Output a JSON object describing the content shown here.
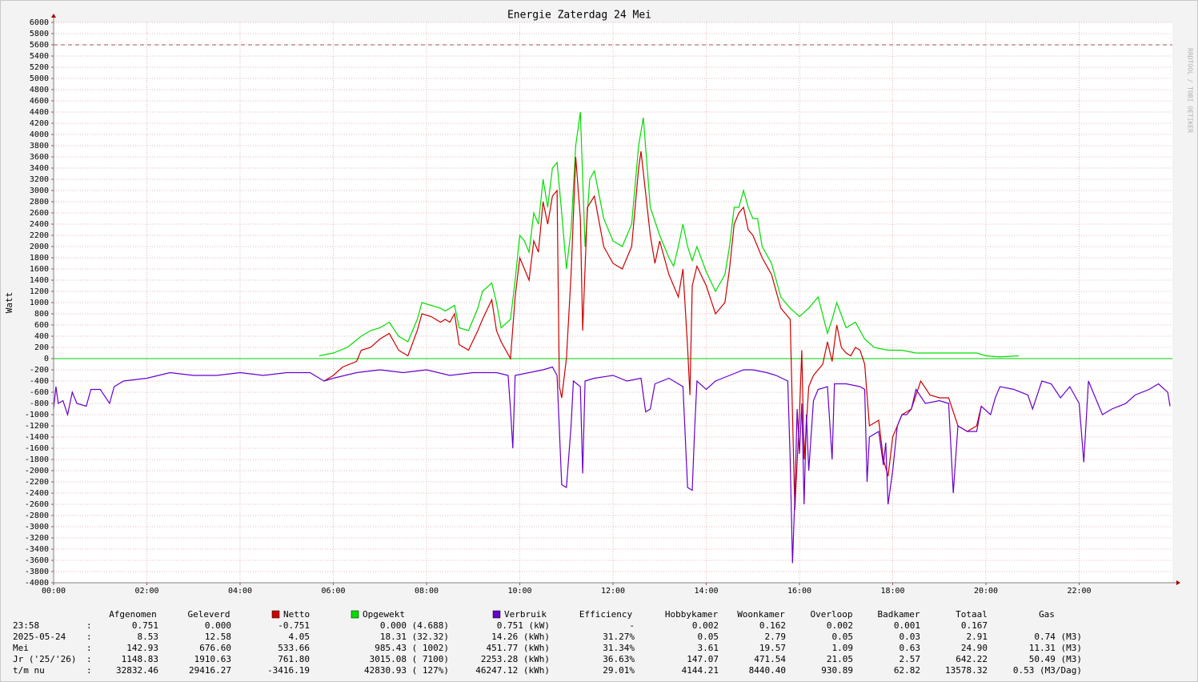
{
  "chart_data": {
    "type": "line",
    "title": "Energie Zaterdag  24 Mei",
    "y_label": "Watt",
    "watermark": "RRDTOOL / TOBI OETIKER",
    "xlim": [
      0,
      24
    ],
    "xticks": [
      {
        "value": 0,
        "label": "00:00"
      },
      {
        "value": 2,
        "label": "02:00"
      },
      {
        "value": 4,
        "label": "04:00"
      },
      {
        "value": 6,
        "label": "06:00"
      },
      {
        "value": 8,
        "label": "08:00"
      },
      {
        "value": 10,
        "label": "10:00"
      },
      {
        "value": 12,
        "label": "12:00"
      },
      {
        "value": 14,
        "label": "14:00"
      },
      {
        "value": 16,
        "label": "16:00"
      },
      {
        "value": 18,
        "label": "18:00"
      },
      {
        "value": 20,
        "label": "20:00"
      },
      {
        "value": 22,
        "label": "22:00"
      }
    ],
    "ylim": [
      -4000,
      6000
    ],
    "yticks": [
      -4000,
      -3800,
      -3600,
      -3400,
      -3200,
      -3000,
      -2800,
      -2600,
      -2400,
      -2200,
      -2000,
      -1800,
      -1600,
      -1400,
      -1200,
      -1000,
      -800,
      -600,
      -400,
      -200,
      0,
      200,
      400,
      600,
      800,
      1000,
      1200,
      1400,
      1600,
      1800,
      2000,
      2200,
      2400,
      2600,
      2800,
      3000,
      3200,
      3400,
      3600,
      3800,
      4000,
      4200,
      4400,
      4600,
      4800,
      5000,
      5200,
      5400,
      5600,
      5800,
      6000
    ],
    "grid": true,
    "reference_line": 5600,
    "series": [
      {
        "name": "Opgewekt",
        "color": "#00dd00",
        "x": [
          5.7,
          6.0,
          6.3,
          6.6,
          6.8,
          7.0,
          7.2,
          7.4,
          7.6,
          7.8,
          7.9,
          8.1,
          8.3,
          8.4,
          8.6,
          8.7,
          8.9,
          9.1,
          9.2,
          9.4,
          9.5,
          9.6,
          9.8,
          9.9,
          10.0,
          10.1,
          10.2,
          10.3,
          10.4,
          10.5,
          10.6,
          10.7,
          10.8,
          10.9,
          11.0,
          11.1,
          11.2,
          11.3,
          11.4,
          11.5,
          11.6,
          11.8,
          12.0,
          12.2,
          12.4,
          12.55,
          12.65,
          12.8,
          13.0,
          13.2,
          13.3,
          13.4,
          13.5,
          13.6,
          13.7,
          13.8,
          14.0,
          14.2,
          14.4,
          14.5,
          14.6,
          14.7,
          14.8,
          14.9,
          15.0,
          15.1,
          15.2,
          15.4,
          15.6,
          15.8,
          16.0,
          16.2,
          16.4,
          16.6,
          16.7,
          16.8,
          17.0,
          17.2,
          17.4,
          17.6,
          17.9,
          18.2,
          18.5,
          19.0,
          19.5,
          19.8,
          20.0,
          20.3,
          20.7
        ],
        "values": [
          50,
          100,
          200,
          400,
          500,
          550,
          650,
          400,
          300,
          700,
          1000,
          950,
          900,
          850,
          950,
          550,
          500,
          900,
          1200,
          1350,
          1000,
          550,
          700,
          1400,
          2200,
          2100,
          1900,
          2600,
          2400,
          3200,
          2700,
          3400,
          3500,
          2600,
          1600,
          2300,
          3800,
          4400,
          2000,
          3200,
          3350,
          2500,
          2100,
          2000,
          2400,
          3800,
          4300,
          2700,
          2200,
          1800,
          1650,
          2000,
          2400,
          2000,
          1750,
          2000,
          1550,
          1200,
          1500,
          2000,
          2700,
          2700,
          3000,
          2700,
          2500,
          2500,
          2000,
          1700,
          1100,
          900,
          750,
          900,
          1100,
          450,
          700,
          1000,
          550,
          650,
          350,
          200,
          150,
          150,
          100,
          100,
          100,
          100,
          50,
          30,
          50
        ]
      },
      {
        "name": "Netto",
        "color": "#cc0000",
        "x": [
          5.8,
          6.0,
          6.2,
          6.5,
          6.6,
          6.8,
          7.0,
          7.2,
          7.4,
          7.6,
          7.8,
          7.9,
          8.1,
          8.3,
          8.4,
          8.5,
          8.6,
          8.7,
          8.9,
          9.1,
          9.2,
          9.4,
          9.5,
          9.6,
          9.8,
          9.9,
          10.0,
          10.1,
          10.2,
          10.3,
          10.4,
          10.5,
          10.6,
          10.7,
          10.8,
          10.85,
          10.9,
          11.0,
          11.1,
          11.2,
          11.3,
          11.35,
          11.45,
          11.6,
          11.8,
          12.0,
          12.2,
          12.4,
          12.55,
          12.6,
          12.8,
          12.9,
          13.0,
          13.2,
          13.4,
          13.5,
          13.6,
          13.65,
          13.7,
          13.8,
          14.0,
          14.2,
          14.4,
          14.5,
          14.6,
          14.7,
          14.8,
          14.9,
          15.0,
          15.2,
          15.4,
          15.6,
          15.8,
          15.9,
          16.0,
          16.05,
          16.1,
          16.2,
          16.3,
          16.5,
          16.6,
          16.7,
          16.8,
          16.9,
          17.0,
          17.1,
          17.2,
          17.3,
          17.4,
          17.5,
          17.7,
          17.8,
          17.9,
          18.0,
          18.2,
          18.4,
          18.6,
          18.8,
          19.0,
          19.2,
          19.4,
          19.6,
          19.8,
          19.9
        ],
        "values": [
          -400,
          -300,
          -150,
          -50,
          150,
          200,
          350,
          450,
          150,
          50,
          500,
          800,
          750,
          650,
          700,
          650,
          800,
          250,
          150,
          500,
          700,
          1050,
          500,
          300,
          0,
          1100,
          1800,
          1600,
          1400,
          2100,
          1900,
          2800,
          2400,
          2900,
          3000,
          -500,
          -700,
          0,
          1500,
          3600,
          2500,
          500,
          2700,
          2900,
          2000,
          1700,
          1600,
          2000,
          3400,
          3700,
          2200,
          1700,
          2100,
          1500,
          1100,
          1600,
          200,
          -650,
          1300,
          1650,
          1300,
          800,
          1000,
          1600,
          2400,
          2600,
          2700,
          2300,
          2200,
          1800,
          1500,
          900,
          700,
          -2700,
          -1000,
          150,
          -1800,
          -500,
          -300,
          -100,
          300,
          -50,
          600,
          200,
          100,
          50,
          200,
          150,
          -100,
          -1200,
          -1100,
          -1800,
          -2100,
          -1400,
          -1000,
          -900,
          -400,
          -650,
          -700,
          -700,
          -1200,
          -1300,
          -1200,
          -850
        ]
      },
      {
        "name": "Verbruik",
        "color": "#6600cc",
        "x": [
          0.0,
          0.05,
          0.1,
          0.2,
          0.3,
          0.4,
          0.5,
          0.7,
          0.8,
          1.0,
          1.2,
          1.3,
          1.5,
          2.0,
          2.5,
          3.0,
          3.5,
          4.0,
          4.5,
          5.0,
          5.5,
          5.7,
          5.8,
          6.0,
          6.5,
          7.0,
          7.5,
          8.0,
          8.5,
          9.0,
          9.5,
          9.75,
          9.8,
          9.85,
          9.9,
          10.5,
          10.7,
          10.8,
          10.9,
          11.0,
          11.1,
          11.15,
          11.3,
          11.35,
          11.4,
          11.6,
          12.0,
          12.3,
          12.6,
          12.7,
          12.8,
          12.9,
          13.2,
          13.5,
          13.6,
          13.7,
          13.75,
          13.8,
          14.0,
          14.2,
          14.5,
          14.8,
          15.0,
          15.3,
          15.5,
          15.75,
          15.8,
          15.85,
          15.9,
          15.95,
          16.0,
          16.05,
          16.1,
          16.15,
          16.2,
          16.3,
          16.4,
          16.6,
          16.7,
          16.75,
          17.0,
          17.3,
          17.4,
          17.45,
          17.5,
          17.7,
          17.8,
          17.85,
          17.9,
          18.0,
          18.1,
          18.2,
          18.3,
          18.4,
          18.5,
          18.7,
          19.0,
          19.2,
          19.3,
          19.4,
          19.6,
          19.8,
          19.9,
          20.1,
          20.2,
          20.3,
          20.6,
          20.9,
          21.0,
          21.2,
          21.4,
          21.6,
          21.8,
          22.0,
          22.1,
          22.2,
          22.5,
          22.7,
          23.0,
          23.2,
          23.5,
          23.7,
          23.9,
          23.95
        ],
        "values": [
          -900,
          -500,
          -800,
          -750,
          -1000,
          -600,
          -800,
          -850,
          -550,
          -550,
          -800,
          -500,
          -400,
          -350,
          -250,
          -300,
          -300,
          -250,
          -300,
          -250,
          -250,
          -350,
          -400,
          -350,
          -250,
          -200,
          -250,
          -200,
          -300,
          -250,
          -250,
          -300,
          -900,
          -1600,
          -300,
          -200,
          -150,
          -300,
          -2250,
          -2300,
          -1200,
          -400,
          -500,
          -2050,
          -400,
          -350,
          -300,
          -400,
          -350,
          -950,
          -900,
          -450,
          -350,
          -500,
          -2300,
          -2350,
          -1300,
          -400,
          -550,
          -400,
          -300,
          -200,
          -200,
          -250,
          -300,
          -400,
          -1800,
          -3650,
          -2500,
          -900,
          -1700,
          -800,
          -2600,
          -1000,
          -2000,
          -750,
          -550,
          -500,
          -1800,
          -450,
          -450,
          -500,
          -550,
          -2200,
          -1400,
          -1300,
          -1900,
          -1500,
          -2600,
          -2000,
          -1200,
          -1000,
          -1000,
          -900,
          -550,
          -800,
          -750,
          -800,
          -2400,
          -1200,
          -1300,
          -1300,
          -850,
          -1000,
          -700,
          -500,
          -550,
          -650,
          -900,
          -400,
          -450,
          -700,
          -500,
          -800,
          -1850,
          -400,
          -1000,
          -900,
          -800,
          -650,
          -550,
          -450,
          -600,
          -850
        ]
      }
    ]
  },
  "table": {
    "header_left": [
      "Afgenomen",
      "Geleverd"
    ],
    "header_right": [
      "Efficiency",
      "Hobbykamer",
      "Woonkamer",
      "Overloop",
      "Badkamer",
      "Totaal",
      "Gas"
    ],
    "rows": [
      [
        "23:58",
        ":",
        "0.751",
        "0.000",
        "-0.751",
        "0.000 (4.688)",
        "0.751 (kW)",
        "-",
        "0.002",
        "0.162",
        "0.002",
        "0.001",
        "0.167"
      ],
      [
        "2025-05-24",
        ":",
        "8.53",
        "12.58",
        "4.05",
        "18.31 (32.32)",
        "14.26 (kWh)",
        "31.27%",
        "0.05",
        "2.79",
        "0.05",
        "0.03",
        "2.91",
        "0.74 (M3)"
      ],
      [
        "Mei",
        ":",
        "142.93",
        "676.60",
        "533.66",
        "985.43 ( 1002)",
        "451.77 (kWh)",
        "31.34%",
        "3.61",
        "19.57",
        "1.09",
        "0.63",
        "24.90",
        "11.31 (M3)"
      ],
      [
        "Jr ('25/'26)",
        ":",
        "1148.83",
        "1910.63",
        "761.80",
        "3015.08 ( 7100)",
        "2253.28 (kWh)",
        "36.63%",
        "147.07",
        "471.54",
        "21.05",
        "2.57",
        "642.22",
        "50.49 (M3)"
      ],
      [
        "t/m nu",
        ":",
        "32832.46",
        "29416.27",
        "-3416.19",
        "42830.93 ( 127%)",
        "46247.12 (kWh)",
        "29.01%",
        "4144.21",
        "8440.40",
        "930.89",
        "62.82",
        "13578.32",
        "0.53 (M3/Dag)"
      ]
    ]
  }
}
